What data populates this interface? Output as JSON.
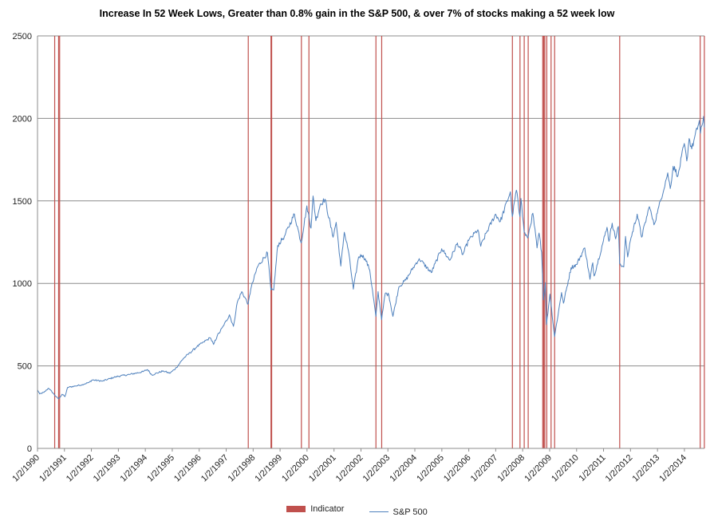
{
  "chart_data": {
    "type": "line",
    "title": "Increase In 52 Week Lows, Greater than 0.8% gain in the S&P 500,  & over 7% of stocks making a 52 week low",
    "xlabel": "",
    "ylabel": "",
    "ylim": [
      0,
      2500
    ],
    "xlim": [
      "1990-01-02",
      "2014-09-30"
    ],
    "yticks": [
      0,
      500,
      1000,
      1500,
      2000,
      2500
    ],
    "xtick_labels": [
      "1/2/1990",
      "1/2/1991",
      "1/2/1992",
      "1/2/1993",
      "1/2/1994",
      "1/2/1995",
      "1/2/1996",
      "1/2/1997",
      "1/2/1998",
      "1/2/1999",
      "1/2/2000",
      "1/2/2001",
      "1/2/2002",
      "1/2/2003",
      "1/2/2004",
      "1/2/2005",
      "1/2/2006",
      "1/2/2007",
      "1/2/2008",
      "1/2/2009",
      "1/2/2010",
      "1/2/2011",
      "1/2/2012",
      "1/2/2013",
      "1/2/2014"
    ],
    "grid": true,
    "legend": {
      "placement": "bottom",
      "entries": [
        "Indicator",
        "S&P 500"
      ]
    },
    "series": [
      {
        "name": "S&P 500",
        "color": "#4f81bd",
        "points": [
          [
            "1990-01-02",
            355
          ],
          [
            "1990-02-01",
            330
          ],
          [
            "1990-04-01",
            340
          ],
          [
            "1990-06-01",
            365
          ],
          [
            "1990-08-01",
            335
          ],
          [
            "1990-09-15",
            312
          ],
          [
            "1990-10-15",
            300
          ],
          [
            "1990-12-01",
            328
          ],
          [
            "1991-01-09",
            314
          ],
          [
            "1991-02-15",
            370
          ],
          [
            "1991-06-01",
            378
          ],
          [
            "1991-09-01",
            387
          ],
          [
            "1991-12-01",
            400
          ],
          [
            "1992-01-15",
            415
          ],
          [
            "1992-06-01",
            408
          ],
          [
            "1992-12-01",
            435
          ],
          [
            "1993-06-01",
            448
          ],
          [
            "1993-12-01",
            465
          ],
          [
            "1994-02-01",
            478
          ],
          [
            "1994-04-01",
            445
          ],
          [
            "1994-09-01",
            470
          ],
          [
            "1994-12-01",
            455
          ],
          [
            "1995-03-01",
            490
          ],
          [
            "1995-06-01",
            545
          ],
          [
            "1995-09-01",
            580
          ],
          [
            "1995-12-01",
            615
          ],
          [
            "1996-03-01",
            645
          ],
          [
            "1996-06-01",
            670
          ],
          [
            "1996-07-15",
            630
          ],
          [
            "1996-09-01",
            680
          ],
          [
            "1996-12-01",
            745
          ],
          [
            "1997-02-15",
            810
          ],
          [
            "1997-04-10",
            740
          ],
          [
            "1997-06-01",
            885
          ],
          [
            "1997-08-01",
            950
          ],
          [
            "1997-10-27",
            875
          ],
          [
            "1997-12-01",
            965
          ],
          [
            "1998-03-01",
            1100
          ],
          [
            "1998-07-15",
            1185
          ],
          [
            "1998-08-31",
            960
          ],
          [
            "1998-10-08",
            960
          ],
          [
            "1998-12-01",
            1230
          ],
          [
            "1999-03-01",
            1285
          ],
          [
            "1999-07-15",
            1420
          ],
          [
            "1999-10-15",
            1245
          ],
          [
            "1999-12-31",
            1470
          ],
          [
            "2000-02-25",
            1335
          ],
          [
            "2000-03-24",
            1530
          ],
          [
            "2000-05-01",
            1380
          ],
          [
            "2000-07-01",
            1480
          ],
          [
            "2000-09-01",
            1510
          ],
          [
            "2000-12-20",
            1280
          ],
          [
            "2001-01-31",
            1370
          ],
          [
            "2001-04-04",
            1105
          ],
          [
            "2001-05-21",
            1310
          ],
          [
            "2001-07-15",
            1200
          ],
          [
            "2001-09-21",
            965
          ],
          [
            "2001-12-01",
            1160
          ],
          [
            "2002-01-15",
            1170
          ],
          [
            "2002-03-01",
            1150
          ],
          [
            "2002-05-01",
            1080
          ],
          [
            "2002-07-23",
            800
          ],
          [
            "2002-08-22",
            950
          ],
          [
            "2002-10-09",
            780
          ],
          [
            "2002-11-27",
            940
          ],
          [
            "2003-01-15",
            930
          ],
          [
            "2003-03-11",
            800
          ],
          [
            "2003-06-01",
            980
          ],
          [
            "2003-09-01",
            1020
          ],
          [
            "2003-12-31",
            1110
          ],
          [
            "2004-03-01",
            1150
          ],
          [
            "2004-08-12",
            1065
          ],
          [
            "2004-12-31",
            1210
          ],
          [
            "2005-04-20",
            1140
          ],
          [
            "2005-08-01",
            1245
          ],
          [
            "2005-10-13",
            1175
          ],
          [
            "2005-12-31",
            1260
          ],
          [
            "2006-05-05",
            1325
          ],
          [
            "2006-06-13",
            1225
          ],
          [
            "2006-09-01",
            1310
          ],
          [
            "2006-12-31",
            1420
          ],
          [
            "2007-03-05",
            1375
          ],
          [
            "2007-07-19",
            1555
          ],
          [
            "2007-08-15",
            1405
          ],
          [
            "2007-10-09",
            1565
          ],
          [
            "2007-11-26",
            1405
          ],
          [
            "2007-12-10",
            1515
          ],
          [
            "2008-01-22",
            1310
          ],
          [
            "2008-03-10",
            1275
          ],
          [
            "2008-05-19",
            1425
          ],
          [
            "2008-07-15",
            1215
          ],
          [
            "2008-08-11",
            1305
          ],
          [
            "2008-09-15",
            1190
          ],
          [
            "2008-10-10",
            900
          ],
          [
            "2008-11-04",
            1005
          ],
          [
            "2008-11-20",
            750
          ],
          [
            "2009-01-06",
            935
          ],
          [
            "2009-03-09",
            677
          ],
          [
            "2009-06-12",
            945
          ],
          [
            "2009-07-08",
            880
          ],
          [
            "2009-10-19",
            1095
          ],
          [
            "2009-12-31",
            1115
          ],
          [
            "2010-04-23",
            1215
          ],
          [
            "2010-07-02",
            1025
          ],
          [
            "2010-08-09",
            1125
          ],
          [
            "2010-08-27",
            1045
          ],
          [
            "2010-12-31",
            1258
          ],
          [
            "2011-02-18",
            1340
          ],
          [
            "2011-03-16",
            1255
          ],
          [
            "2011-04-29",
            1365
          ],
          [
            "2011-06-15",
            1270
          ],
          [
            "2011-07-22",
            1345
          ],
          [
            "2011-08-08",
            1120
          ],
          [
            "2011-10-03",
            1100
          ],
          [
            "2011-10-27",
            1285
          ],
          [
            "2011-11-25",
            1160
          ],
          [
            "2011-12-31",
            1258
          ],
          [
            "2012-04-02",
            1420
          ],
          [
            "2012-06-01",
            1280
          ],
          [
            "2012-09-14",
            1465
          ],
          [
            "2012-11-15",
            1355
          ],
          [
            "2012-12-31",
            1426
          ],
          [
            "2013-05-21",
            1670
          ],
          [
            "2013-06-24",
            1575
          ],
          [
            "2013-08-02",
            1710
          ],
          [
            "2013-10-08",
            1655
          ],
          [
            "2013-12-31",
            1848
          ],
          [
            "2014-02-03",
            1742
          ],
          [
            "2014-03-07",
            1878
          ],
          [
            "2014-04-11",
            1815
          ],
          [
            "2014-07-24",
            1988
          ],
          [
            "2014-08-07",
            1910
          ],
          [
            "2014-09-18",
            2012
          ],
          [
            "2014-09-30",
            1945
          ]
        ]
      }
    ],
    "indicator": {
      "name": "Indicator",
      "color": "#c0504d",
      "dates": [
        "1990-08-23",
        "1990-10-15",
        "1990-10-29",
        "1997-10-28",
        "1998-09-01",
        "1998-09-10",
        "1999-10-18",
        "2000-01-28",
        "2002-07-24",
        "2002-10-10",
        "2007-08-16",
        "2007-11-27",
        "2008-01-23",
        "2008-03-17",
        "2008-09-30",
        "2008-10-14",
        "2008-10-28",
        "2008-11-24",
        "2009-01-21",
        "2009-03-10",
        "2011-08-09",
        "2014-08-04",
        "2014-09-29"
      ]
    }
  }
}
